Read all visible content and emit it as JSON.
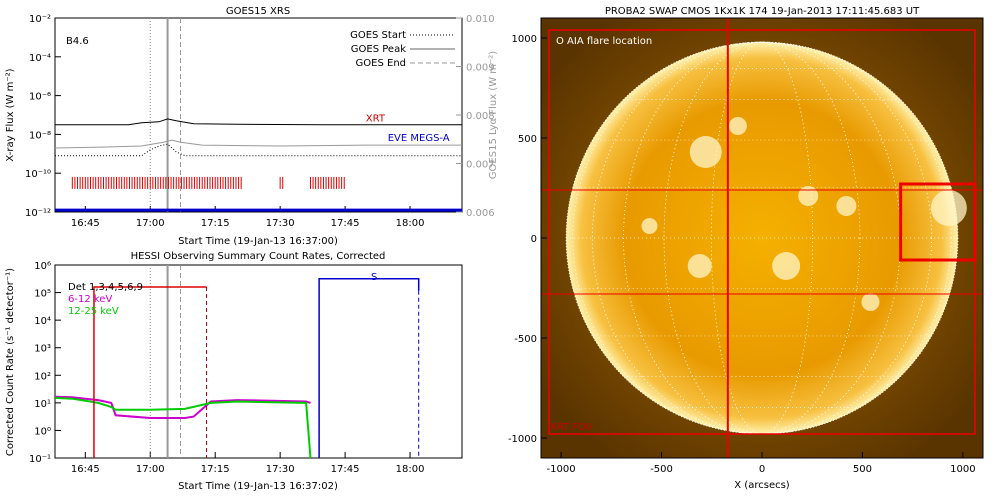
{
  "chart_data": [
    {
      "id": "goes",
      "type": "line",
      "title": "GOES15 XRS",
      "xlabel": "Start Time (19-Jan-13 16:37:00)",
      "ylabel": "X-ray Flux (W m⁻²)",
      "ylabel2": "GOES15 Lyα Flux (W m⁻²)",
      "xticks": [
        "16:45",
        "17:00",
        "17:15",
        "17:30",
        "17:45",
        "18:00"
      ],
      "xlim_min": [
        38,
        132
      ],
      "y_log_exp_range": [
        -12,
        -2
      ],
      "yticks": [
        "10⁻¹²",
        "10⁻¹⁰",
        "10⁻⁸",
        "10⁻⁶",
        "10⁻⁴",
        "10⁻²"
      ],
      "yticks2": [
        "0.006",
        "0.007",
        "0.008",
        "0.009",
        "0.010"
      ],
      "ylim2": [
        0.006,
        0.01
      ],
      "class_label": "B4.6",
      "legend": [
        "GOES Start",
        "GOES Peak",
        "GOES End"
      ],
      "markers_min": {
        "start": 60,
        "peak": 64,
        "end": 67
      },
      "annotations": [
        {
          "text": "XRT",
          "color": "#cc0000",
          "x": 112,
          "logy": -7.5
        },
        {
          "text": "EVE MEGS-A",
          "color": "#0000cc",
          "x": 122,
          "logy": -8.5
        }
      ],
      "series": [
        {
          "color": "#000000",
          "points": [
            [
              38,
              -7.5
            ],
            [
              55,
              -7.5
            ],
            [
              58,
              -7.4
            ],
            [
              62,
              -7.35
            ],
            [
              64,
              -7.2
            ],
            [
              66,
              -7.3
            ],
            [
              70,
              -7.45
            ],
            [
              80,
              -7.48
            ],
            [
              100,
              -7.5
            ],
            [
              132,
              -7.5
            ]
          ]
        },
        {
          "color": "#999999",
          "points": [
            [
              38,
              -8.7
            ],
            [
              50,
              -8.65
            ],
            [
              58,
              -8.6
            ],
            [
              63,
              -8.4
            ],
            [
              65,
              -8.3
            ],
            [
              67,
              -8.4
            ],
            [
              72,
              -8.55
            ],
            [
              90,
              -8.6
            ],
            [
              110,
              -8.55
            ],
            [
              132,
              -8.55
            ]
          ]
        },
        {
          "color": "#000000",
          "dotted": true,
          "points": [
            [
              38,
              -9.1
            ],
            [
              58,
              -9.1
            ],
            [
              60,
              -8.8
            ],
            [
              62,
              -8.6
            ],
            [
              64,
              -8.5
            ],
            [
              66,
              -8.9
            ],
            [
              68,
              -9.1
            ],
            [
              80,
              -9.1
            ],
            [
              132,
              -9.1
            ]
          ]
        },
        {
          "color": "#0000cc",
          "width": 3,
          "points": [
            [
              38,
              -11.9
            ],
            [
              132,
              -11.9
            ]
          ]
        }
      ],
      "xrt_coverage_min": [
        [
          42,
          81
        ],
        [
          90,
          91
        ],
        [
          97,
          105
        ]
      ],
      "xrt_level_log": -10.5
    },
    {
      "id": "hessi",
      "type": "line",
      "title": "HESSI Observing Summary Count Rates, Corrected",
      "xlabel": "Start Time (19-Jan-13 16:37:02)",
      "ylabel": "Corrected Count Rate (s⁻¹ detector⁻¹)",
      "xticks": [
        "16:45",
        "17:00",
        "17:15",
        "17:30",
        "17:45",
        "18:00"
      ],
      "xlim_min": [
        38,
        132
      ],
      "y_log_exp_range": [
        -1,
        6
      ],
      "yticks": [
        "10⁻¹",
        "10⁰",
        "10¹",
        "10²",
        "10³",
        "10⁴",
        "10⁵",
        "10⁶"
      ],
      "legend": [
        {
          "label": "Det 1,3,4,5,6,9",
          "color": "#000000"
        },
        {
          "label": "6-12 keV",
          "color": "#cc00cc"
        },
        {
          "label": "12-25 keV",
          "color": "#00cc00"
        }
      ],
      "markers_min": {
        "start": 60,
        "peak": 64,
        "end": 67
      },
      "label_s": "S",
      "series": [
        {
          "color": "#cc00cc",
          "points": [
            [
              38,
              1.22
            ],
            [
              42,
              1.2
            ],
            [
              45,
              1.15
            ],
            [
              48,
              1.1
            ],
            [
              51,
              1.0
            ],
            [
              52,
              0.55
            ],
            [
              60,
              0.45
            ],
            [
              68,
              0.45
            ],
            [
              70,
              0.5
            ],
            [
              74,
              1.05
            ],
            [
              80,
              1.1
            ],
            [
              88,
              1.08
            ],
            [
              96,
              1.05
            ],
            [
              97,
              1.0
            ]
          ]
        },
        {
          "color": "#00cc00",
          "points": [
            [
              38,
              1.18
            ],
            [
              42,
              1.15
            ],
            [
              48,
              1.0
            ],
            [
              51,
              0.85
            ],
            [
              52,
              0.75
            ],
            [
              60,
              0.75
            ],
            [
              68,
              0.78
            ],
            [
              74,
              1.0
            ],
            [
              80,
              1.05
            ],
            [
              88,
              1.02
            ],
            [
              96,
              1.0
            ],
            [
              97,
              -1.0
            ]
          ]
        }
      ],
      "red_level_log": 5.2,
      "red_interval_min": [
        47,
        73
      ],
      "blue_level_log": 5.5,
      "blue_interval_min": [
        99,
        122
      ]
    },
    {
      "id": "swap",
      "type": "image",
      "title": "PROBA2 SWAP CMOS 1Kx1K 174 19-Jan-2013 17:11:45.683 UT",
      "xlabel": "X (arcsecs)",
      "xticks": [
        "-1000",
        "-500",
        "0",
        "500",
        "1000"
      ],
      "yticks": [
        "-1000",
        "-500",
        "0",
        "500",
        "1000"
      ],
      "xlim": [
        -1100,
        1100
      ],
      "ylim": [
        -1100,
        1100
      ],
      "sun_radius_arcsec": 975,
      "label_aia": "O AIA flare location",
      "label_fov": "XRT FOV",
      "crosshair_x": -170,
      "crosshair_y": -280,
      "crosshair_y2": 240,
      "flare_box": [
        690,
        -110,
        1060,
        270
      ],
      "fov_box": [
        -1060,
        -980,
        1060,
        1040
      ]
    }
  ]
}
